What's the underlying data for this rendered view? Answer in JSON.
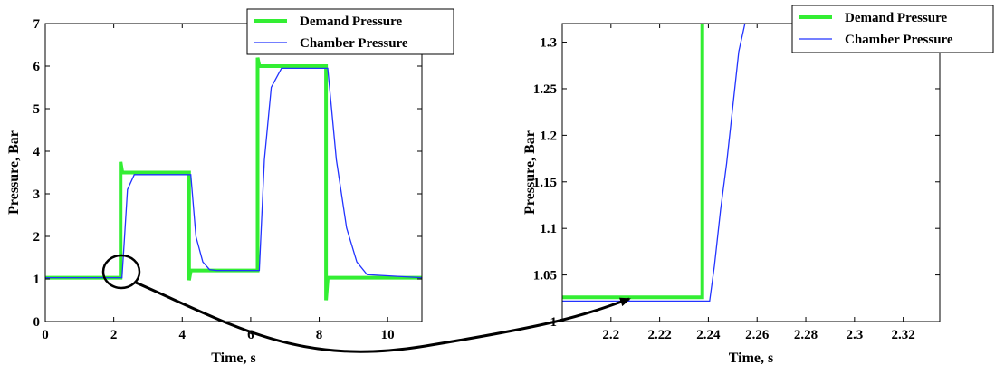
{
  "chart_data": [
    {
      "type": "line",
      "xlabel": "Time, s",
      "ylabel": "Pressure, Bar",
      "xlim": [
        0,
        11
      ],
      "ylim": [
        0,
        7
      ],
      "xticks": [
        0,
        2,
        4,
        6,
        8,
        10
      ],
      "yticks": [
        0,
        1,
        2,
        3,
        4,
        5,
        6,
        7
      ],
      "xtick_labels": [
        "0",
        "2",
        "4",
        "6",
        "8",
        "10"
      ],
      "ytick_labels": [
        "0",
        "1",
        "2",
        "3",
        "4",
        "5",
        "6",
        "7"
      ],
      "legend_position": "top-right",
      "series": [
        {
          "name": "Demand Pressure",
          "color": "#33ee33",
          "x": [
            0,
            2.2,
            2.2,
            2.25,
            2.25,
            4.2,
            4.2,
            4.25,
            4.25,
            6.2,
            6.2,
            6.25,
            6.25,
            8.2,
            8.2,
            8.25,
            8.25,
            11
          ],
          "y": [
            1.03,
            1.03,
            3.75,
            3.5,
            3.5,
            3.5,
            0.97,
            1.2,
            1.2,
            1.2,
            6.2,
            6.0,
            6.0,
            6.0,
            0.5,
            1.03,
            1.03,
            1.03
          ]
        },
        {
          "name": "Chamber Pressure",
          "color": "#2233ff",
          "x": [
            0,
            2.24,
            2.3,
            2.4,
            2.6,
            4.25,
            4.4,
            4.6,
            4.8,
            5.0,
            6.25,
            6.4,
            6.6,
            6.9,
            8.25,
            8.5,
            8.8,
            9.1,
            9.4,
            11
          ],
          "y": [
            1.03,
            1.03,
            1.8,
            3.1,
            3.45,
            3.45,
            2.0,
            1.4,
            1.22,
            1.2,
            1.2,
            3.8,
            5.5,
            5.95,
            5.95,
            3.8,
            2.2,
            1.4,
            1.1,
            1.03
          ]
        }
      ]
    },
    {
      "type": "line",
      "xlabel": "Time, s",
      "ylabel": "Pressure, Bar",
      "xlim": [
        2.18,
        2.335
      ],
      "ylim": [
        1.0,
        1.32
      ],
      "xticks": [
        2.2,
        2.22,
        2.24,
        2.26,
        2.28,
        2.3,
        2.32
      ],
      "yticks": [
        1.0,
        1.05,
        1.1,
        1.15,
        1.2,
        1.25,
        1.3
      ],
      "xtick_labels": [
        "2.2",
        "2.22",
        "2.24",
        "2.26",
        "2.28",
        "2.3",
        "2.32"
      ],
      "ytick_labels": [
        "1",
        "1.05",
        "1.1",
        "1.15",
        "1.2",
        "1.25",
        "1.3"
      ],
      "legend_position": "top-right",
      "series": [
        {
          "name": "Demand Pressure",
          "color": "#33ee33",
          "x": [
            2.18,
            2.2375,
            2.2375
          ],
          "y": [
            1.026,
            1.026,
            1.32
          ]
        },
        {
          "name": "Chamber Pressure",
          "color": "#2233ff",
          "x": [
            2.18,
            2.2405,
            2.2425,
            2.245,
            2.2475,
            2.25,
            2.2525,
            2.255
          ],
          "y": [
            1.022,
            1.022,
            1.06,
            1.12,
            1.17,
            1.23,
            1.29,
            1.32
          ]
        }
      ]
    }
  ]
}
